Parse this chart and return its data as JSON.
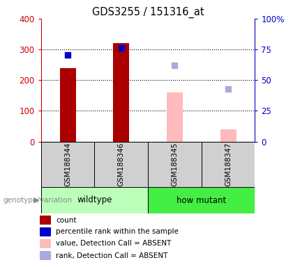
{
  "title": "GDS3255 / 151316_at",
  "samples": [
    "GSM188344",
    "GSM188346",
    "GSM188345",
    "GSM188347"
  ],
  "red_bars": [
    240,
    320,
    null,
    null
  ],
  "pink_bars": [
    null,
    null,
    160,
    40
  ],
  "blue_squares": [
    283,
    305,
    null,
    null
  ],
  "lightblue_squares": [
    null,
    null,
    248,
    172
  ],
  "ylim_left": [
    0,
    400
  ],
  "yticks_left": [
    0,
    100,
    200,
    300,
    400
  ],
  "yticks_right_labels": [
    "0",
    "25",
    "50",
    "75",
    "100%"
  ],
  "yticks_right_vals": [
    0,
    100,
    200,
    300,
    400
  ],
  "left_axis_color": "#cc0000",
  "right_axis_color": "#0000cc",
  "red_bar_color": "#aa0000",
  "pink_bar_color": "#ffbbbb",
  "blue_sq_color": "#0000cc",
  "lightblue_sq_color": "#aaaadd",
  "genotype_groups": [
    {
      "label": "wildtype",
      "samples": [
        0,
        1
      ],
      "color": "#bbffbb"
    },
    {
      "label": "how mutant",
      "samples": [
        2,
        3
      ],
      "color": "#44ee44"
    }
  ],
  "legend_items": [
    {
      "label": "count",
      "color": "#aa0000"
    },
    {
      "label": "percentile rank within the sample",
      "color": "#0000cc"
    },
    {
      "label": "value, Detection Call = ABSENT",
      "color": "#ffbbbb"
    },
    {
      "label": "rank, Detection Call = ABSENT",
      "color": "#aaaadd"
    }
  ],
  "genotype_label": "genotype/variation",
  "bar_width": 0.3,
  "x_positions": [
    0,
    1,
    2,
    3
  ]
}
